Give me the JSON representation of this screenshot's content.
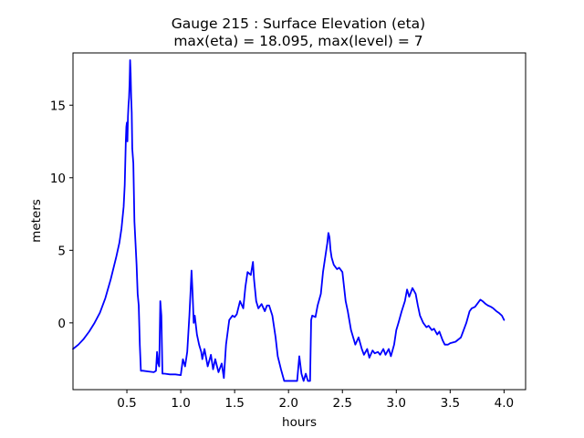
{
  "chart_data": {
    "type": "line",
    "title": "Gauge 215 : Surface Elevation (eta)",
    "subtitle": "max(eta) =  18.095,    max(level) = 7",
    "xlabel": "hours",
    "ylabel": "meters",
    "xlim": [
      0.0,
      4.2
    ],
    "ylim": [
      -4.6,
      18.6
    ],
    "xticks": [
      0.5,
      1.0,
      1.5,
      2.0,
      2.5,
      3.0,
      3.5,
      4.0
    ],
    "xtick_labels": [
      "0.5",
      "1.0",
      "1.5",
      "2.0",
      "2.5",
      "3.0",
      "3.5",
      "4.0"
    ],
    "yticks": [
      0,
      5,
      10,
      15
    ],
    "ytick_labels": [
      "0",
      "5",
      "10",
      "15"
    ],
    "grid": false,
    "colors": {
      "series": "#0000ff",
      "axes": "#000000",
      "background": "#ffffff"
    },
    "series": [
      {
        "name": "eta",
        "x": [
          0.0,
          0.05,
          0.1,
          0.15,
          0.2,
          0.25,
          0.3,
          0.35,
          0.4,
          0.43,
          0.45,
          0.47,
          0.48,
          0.49,
          0.495,
          0.5,
          0.505,
          0.51,
          0.515,
          0.52,
          0.525,
          0.53,
          0.535,
          0.54,
          0.545,
          0.55,
          0.56,
          0.57,
          0.58,
          0.59,
          0.6,
          0.61,
          0.62,
          0.63,
          0.65,
          0.7,
          0.75,
          0.77,
          0.78,
          0.79,
          0.8,
          0.81,
          0.82,
          0.83,
          0.85,
          0.9,
          0.95,
          1.0,
          1.02,
          1.04,
          1.06,
          1.08,
          1.09,
          1.1,
          1.11,
          1.12,
          1.13,
          1.15,
          1.17,
          1.19,
          1.2,
          1.22,
          1.25,
          1.28,
          1.3,
          1.32,
          1.35,
          1.38,
          1.4,
          1.42,
          1.45,
          1.48,
          1.5,
          1.52,
          1.55,
          1.58,
          1.6,
          1.62,
          1.65,
          1.67,
          1.68,
          1.7,
          1.72,
          1.75,
          1.78,
          1.8,
          1.82,
          1.85,
          1.88,
          1.9,
          1.93,
          1.96,
          2.0,
          2.05,
          2.08,
          2.1,
          2.12,
          2.14,
          2.16,
          2.18,
          2.2,
          2.21,
          2.22,
          2.25,
          2.27,
          2.3,
          2.32,
          2.34,
          2.36,
          2.37,
          2.38,
          2.39,
          2.4,
          2.42,
          2.45,
          2.47,
          2.5,
          2.53,
          2.55,
          2.58,
          2.6,
          2.62,
          2.65,
          2.68,
          2.7,
          2.73,
          2.75,
          2.78,
          2.8,
          2.83,
          2.85,
          2.88,
          2.9,
          2.93,
          2.95,
          2.98,
          3.0,
          3.02,
          3.05,
          3.08,
          3.1,
          3.12,
          3.15,
          3.18,
          3.2,
          3.22,
          3.25,
          3.28,
          3.3,
          3.33,
          3.35,
          3.38,
          3.4,
          3.43,
          3.45,
          3.48,
          3.5,
          3.55,
          3.6,
          3.65,
          3.68,
          3.7,
          3.73,
          3.75,
          3.78,
          3.8,
          3.83,
          3.85,
          3.88,
          3.9,
          3.93,
          3.95,
          3.98,
          4.0
        ],
        "y": [
          -1.8,
          -1.5,
          -1.1,
          -0.6,
          0.0,
          0.7,
          1.7,
          3.0,
          4.5,
          5.5,
          6.5,
          8.0,
          9.5,
          12.5,
          13.5,
          13.8,
          12.5,
          14.2,
          15.0,
          15.5,
          16.5,
          18.1,
          17.2,
          15.5,
          14.5,
          12.0,
          11.0,
          7.0,
          5.5,
          4.0,
          2.0,
          1.2,
          -1.5,
          -3.3,
          -3.3,
          -3.35,
          -3.4,
          -3.3,
          -2.0,
          -2.8,
          -3.0,
          1.5,
          0.5,
          -3.5,
          -3.5,
          -3.55,
          -3.55,
          -3.6,
          -2.5,
          -3.0,
          -2.0,
          0.5,
          2.0,
          3.6,
          2.0,
          0.0,
          0.5,
          -0.8,
          -1.5,
          -2.0,
          -2.5,
          -1.8,
          -3.0,
          -2.2,
          -3.2,
          -2.5,
          -3.4,
          -2.8,
          -3.8,
          -1.5,
          0.2,
          0.5,
          0.4,
          0.6,
          1.5,
          1.0,
          2.5,
          3.5,
          3.3,
          4.2,
          3.0,
          1.5,
          1.0,
          1.3,
          0.8,
          1.2,
          1.2,
          0.5,
          -1.0,
          -2.3,
          -3.2,
          -4.0,
          -4.0,
          -4.0,
          -4.0,
          -2.3,
          -3.5,
          -4.0,
          -3.5,
          -4.0,
          -4.0,
          0.2,
          0.5,
          0.4,
          1.2,
          2.0,
          3.5,
          4.5,
          5.5,
          6.2,
          5.9,
          5.0,
          4.5,
          4.0,
          3.7,
          3.8,
          3.5,
          1.5,
          0.8,
          -0.5,
          -1.0,
          -1.5,
          -1.0,
          -1.8,
          -2.2,
          -1.8,
          -2.4,
          -1.9,
          -2.1,
          -2.0,
          -2.2,
          -1.8,
          -2.2,
          -1.8,
          -2.3,
          -1.5,
          -0.5,
          0.0,
          0.8,
          1.5,
          2.3,
          1.8,
          2.4,
          2.0,
          1.2,
          0.5,
          0.0,
          -0.3,
          -0.2,
          -0.5,
          -0.4,
          -0.8,
          -0.6,
          -1.2,
          -1.5,
          -1.5,
          -1.4,
          -1.3,
          -1.0,
          0.0,
          0.8,
          1.0,
          1.1,
          1.3,
          1.6,
          1.5,
          1.3,
          1.2,
          1.1,
          1.0,
          0.8,
          0.7,
          0.5,
          0.2
        ]
      }
    ]
  }
}
